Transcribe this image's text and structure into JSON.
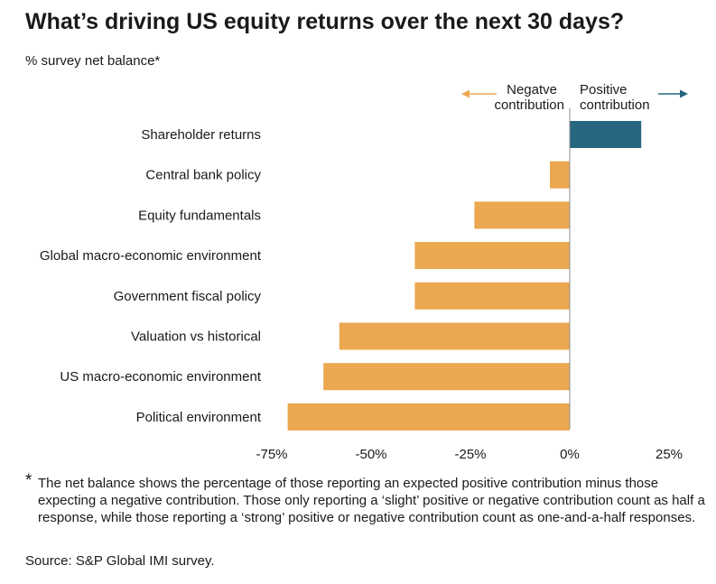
{
  "title": "What’s driving US equity returns over the next 30 days?",
  "subtitle": "% survey net balance*",
  "legend": {
    "negative_line1": "Negatve",
    "negative_line2": "contribution",
    "positive_line1": "Positive",
    "positive_line2": "contribution"
  },
  "colors": {
    "negative": "#EBA850",
    "positive": "#26677F",
    "axis": "#8c8c8c",
    "negative_arrow": "#EBA850",
    "positive_arrow": "#26677F"
  },
  "chart_data": {
    "type": "bar",
    "orientation": "horizontal",
    "title": "What’s driving US equity returns over the next 30 days?",
    "xlabel": "% survey net balance*",
    "ylabel": "",
    "categories": [
      "Shareholder returns",
      "Central bank policy",
      "Equity fundamentals",
      "Global macro-economic environment",
      "Government fiscal policy",
      "Valuation vs historical",
      "US macro-economic environment",
      "Political environment"
    ],
    "values": [
      18,
      -5,
      -24,
      -39,
      -39,
      -58,
      -62,
      -71
    ],
    "xlim": [
      -75,
      25
    ],
    "ticks": [
      -75,
      -50,
      -25,
      0,
      25
    ],
    "tick_labels": [
      "-75%",
      "-50%",
      "-25%",
      "0%",
      "25%"
    ],
    "grid": false
  },
  "footnote": {
    "marker": "*",
    "text": "The net balance shows the percentage of those reporting an expected positive contribution minus those expecting a negative contribution. Those only reporting a ‘slight’ positive or negative contribution count as half a response, while those reporting a ‘strong’ positive or negative contribution count as one-and-a-half responses."
  },
  "source": "Source: S&P Global IMI survey."
}
